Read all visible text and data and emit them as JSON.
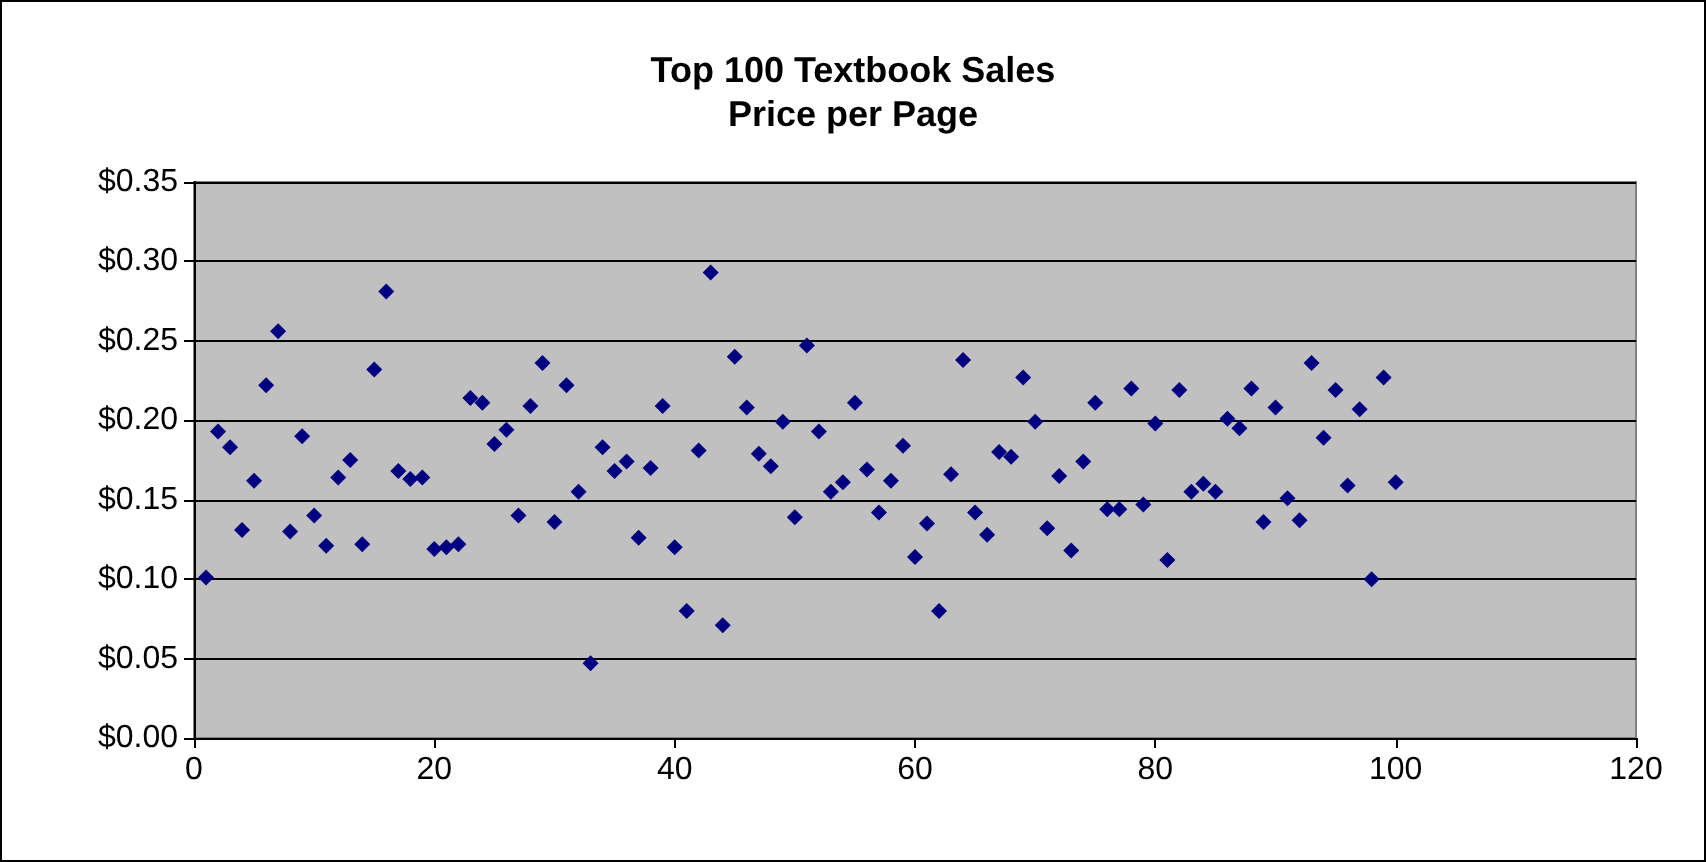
{
  "chart_data": {
    "type": "scatter",
    "title": "Top 100 Textbook Sales",
    "subtitle": "Price per Page",
    "x": [
      1,
      2,
      3,
      4,
      5,
      6,
      7,
      8,
      9,
      10,
      11,
      12,
      13,
      14,
      15,
      16,
      17,
      18,
      19,
      20,
      21,
      22,
      23,
      24,
      25,
      26,
      27,
      28,
      29,
      30,
      31,
      32,
      33,
      34,
      35,
      36,
      37,
      38,
      39,
      40,
      41,
      42,
      43,
      44,
      45,
      46,
      47,
      48,
      49,
      50,
      51,
      52,
      53,
      54,
      55,
      56,
      57,
      58,
      59,
      60,
      61,
      62,
      63,
      64,
      65,
      66,
      67,
      68,
      69,
      70,
      71,
      72,
      73,
      74,
      75,
      76,
      77,
      78,
      79,
      80,
      81,
      82,
      83,
      84,
      85,
      86,
      87,
      88,
      89,
      90,
      91,
      92,
      93,
      94,
      95,
      96,
      97,
      98,
      99,
      100
    ],
    "series": [
      {
        "color": "#000080",
        "values": [
          0.101,
          0.193,
          0.183,
          0.131,
          0.162,
          0.222,
          0.256,
          0.13,
          0.19,
          0.14,
          0.121,
          0.164,
          0.175,
          0.122,
          0.232,
          0.281,
          0.168,
          0.163,
          0.164,
          0.119,
          0.12,
          0.122,
          0.214,
          0.211,
          0.185,
          0.194,
          0.14,
          0.209,
          0.236,
          0.136,
          0.222,
          0.155,
          0.047,
          0.183,
          0.168,
          0.174,
          0.126,
          0.17,
          0.209,
          0.12,
          0.08,
          0.181,
          0.293,
          0.071,
          0.24,
          0.208,
          0.179,
          0.171,
          0.199,
          0.139,
          0.247,
          0.193,
          0.155,
          0.161,
          0.211,
          0.169,
          0.142,
          0.162,
          0.184,
          0.114,
          0.135,
          0.08,
          0.166,
          0.238,
          0.142,
          0.128,
          0.18,
          0.177,
          0.227,
          0.199,
          0.132,
          0.165,
          0.118,
          0.174,
          0.211,
          0.144,
          0.144,
          0.22,
          0.147,
          0.198,
          0.112,
          0.219,
          0.155,
          0.16,
          0.155,
          0.201,
          0.195,
          0.22,
          0.136,
          0.208,
          0.151,
          0.137,
          0.236,
          0.189,
          0.219,
          0.159,
          0.207,
          0.1,
          0.227,
          0.161
        ]
      }
    ],
    "xlim": [
      0,
      120
    ],
    "xticks": [
      0,
      20,
      40,
      60,
      80,
      100,
      120
    ],
    "ylim": [
      0,
      0.35
    ],
    "yticks": [
      {
        "value": 0,
        "label": "$0.00"
      },
      {
        "value": 0.05,
        "label": "$0.05"
      },
      {
        "value": 0.1,
        "label": "$0.10"
      },
      {
        "value": 0.15,
        "label": "$0.15"
      },
      {
        "value": 0.2,
        "label": "$0.20"
      },
      {
        "value": 0.25,
        "label": "$0.25"
      },
      {
        "value": 0.3,
        "label": "$0.30"
      },
      {
        "value": 0.35,
        "label": "$0.35"
      }
    ],
    "grid": "y",
    "marker": "diamond"
  }
}
